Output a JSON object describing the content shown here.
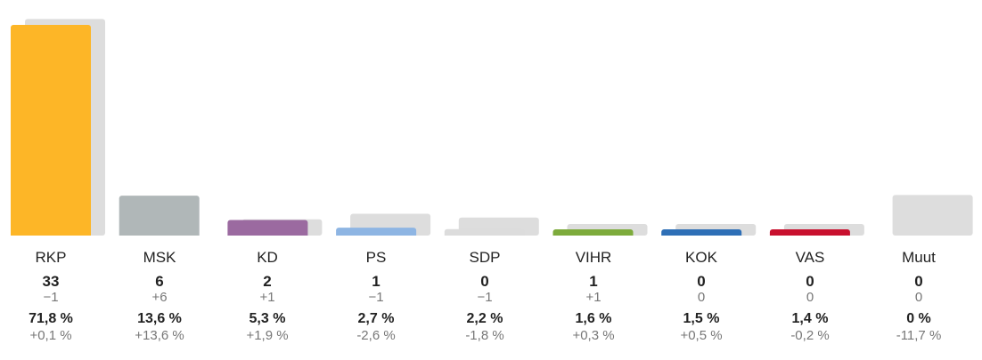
{
  "chart_data": {
    "type": "bar",
    "categories": [
      "RKP",
      "MSK",
      "KD",
      "PS",
      "SDP",
      "VIHR",
      "KOK",
      "VAS",
      "Muut"
    ],
    "series": [
      {
        "values": [
          71.8,
          13.6,
          5.3,
          2.7,
          2.2,
          1.6,
          1.5,
          1.4,
          0
        ]
      },
      {
        "values": [
          71.7,
          0,
          3.4,
          5.3,
          4.0,
          1.3,
          1.0,
          1.6,
          11.7
        ]
      }
    ],
    "colors": [
      "#fdb627",
      "#b0b7b8",
      "#9b6aa0",
      "#8eb5e3",
      "#dcdcdc",
      "#7dab3c",
      "#2e6fb6",
      "#c8102e",
      "#cccccc"
    ],
    "previous_color": "#dddddd",
    "ylim": [
      0,
      75
    ],
    "grid": false,
    "legend": "none"
  },
  "parties": [
    {
      "name": "RKP",
      "seats": "33",
      "seat_change": "−1",
      "pct": "71,8 %",
      "pct_change": "+0,1 %"
    },
    {
      "name": "MSK",
      "seats": "6",
      "seat_change": "+6",
      "pct": "13,6 %",
      "pct_change": "+13,6 %"
    },
    {
      "name": "KD",
      "seats": "2",
      "seat_change": "+1",
      "pct": "5,3 %",
      "pct_change": "+1,9 %"
    },
    {
      "name": "PS",
      "seats": "1",
      "seat_change": "−1",
      "pct": "2,7 %",
      "pct_change": "-2,6 %"
    },
    {
      "name": "SDP",
      "seats": "0",
      "seat_change": "−1",
      "pct": "2,2 %",
      "pct_change": "-1,8 %"
    },
    {
      "name": "VIHR",
      "seats": "1",
      "seat_change": "+1",
      "pct": "1,6 %",
      "pct_change": "+0,3 %"
    },
    {
      "name": "KOK",
      "seats": "0",
      "seat_change": "0",
      "pct": "1,5 %",
      "pct_change": "+0,5 %"
    },
    {
      "name": "VAS",
      "seats": "0",
      "seat_change": "0",
      "pct": "1,4 %",
      "pct_change": "-0,2 %"
    },
    {
      "name": "Muut",
      "seats": "0",
      "seat_change": "0",
      "pct": "0 %",
      "pct_change": "-11,7 %"
    }
  ]
}
